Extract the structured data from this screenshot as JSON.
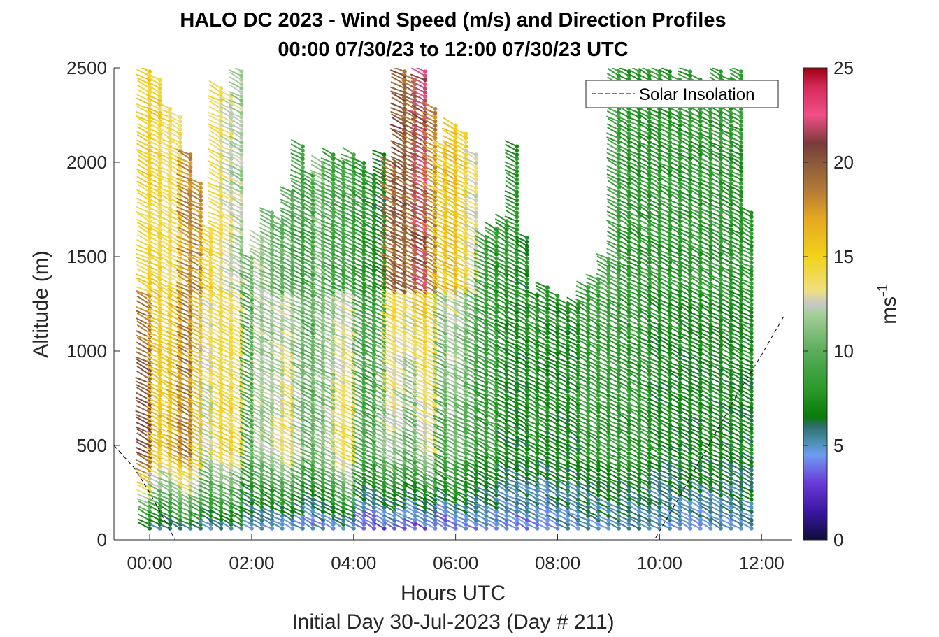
{
  "chart_data": {
    "type": "wind-barb-profile",
    "title_line1": "HALO DC 2023 - Wind Speed (m/s) and Direction Profiles",
    "title_line2": "00:00 07/30/23 to 12:00 07/30/23  UTC",
    "xlabel": "Hours UTC",
    "ylabel": "Altitude (m)",
    "footer": "Initial Day 30-Jul-2023 (Day # 211)",
    "x_ticks": [
      "00:00",
      "02:00",
      "04:00",
      "06:00",
      "08:00",
      "10:00",
      "12:00"
    ],
    "x_tick_hours": [
      0,
      2,
      4,
      6,
      8,
      10,
      12
    ],
    "xlim_hours": [
      -0.7,
      12.6
    ],
    "y_ticks": [
      "0",
      "500",
      "1000",
      "1500",
      "2000",
      "2500"
    ],
    "y_tick_values": [
      0,
      500,
      1000,
      1500,
      2000,
      2500
    ],
    "ylim": [
      0,
      2500
    ],
    "colorbar": {
      "label": "ms",
      "label_exponent": "-1",
      "ticks": [
        "0",
        "5",
        "10",
        "15",
        "20",
        "25"
      ],
      "tick_values": [
        0,
        5,
        10,
        15,
        20,
        25
      ],
      "range": [
        0,
        25
      ],
      "stops": [
        {
          "v": 0,
          "c": "#0d0d3a"
        },
        {
          "v": 1.5,
          "c": "#3a17a0"
        },
        {
          "v": 3,
          "c": "#6a3ad8"
        },
        {
          "v": 4.5,
          "c": "#6f9cf0"
        },
        {
          "v": 5.2,
          "c": "#4a8fb0"
        },
        {
          "v": 6,
          "c": "#2f6e6e"
        },
        {
          "v": 6.5,
          "c": "#0a7a0a"
        },
        {
          "v": 8,
          "c": "#2b9a2b"
        },
        {
          "v": 10,
          "c": "#5aad5a"
        },
        {
          "v": 12,
          "c": "#a7cf9a"
        },
        {
          "v": 12.5,
          "c": "#c8c8c8"
        },
        {
          "v": 13.2,
          "c": "#efe080"
        },
        {
          "v": 15,
          "c": "#f2d21a"
        },
        {
          "v": 17,
          "c": "#e6a820"
        },
        {
          "v": 18.5,
          "c": "#b47a36"
        },
        {
          "v": 20,
          "c": "#8a5a3a"
        },
        {
          "v": 21,
          "c": "#7a3a3a"
        },
        {
          "v": 22.5,
          "c": "#f04f87"
        },
        {
          "v": 24,
          "c": "#d42a5a"
        },
        {
          "v": 25,
          "c": "#a00010"
        }
      ]
    },
    "legend": {
      "label": "Solar Insolation",
      "position": "top-right",
      "style": "dashed"
    },
    "solar_insolation_hours": [
      -0.7,
      -0.3,
      0.0,
      0.5,
      9.9,
      10.5,
      11.0,
      11.5,
      12.0,
      12.45
    ],
    "solar_insolation_altitude": [
      500,
      380,
      250,
      0,
      0,
      280,
      520,
      760,
      980,
      1190
    ],
    "profile_times_hours": [
      0.0,
      0.2,
      0.4,
      0.6,
      0.8,
      1.0,
      1.2,
      1.4,
      1.6,
      1.8,
      2.0,
      2.2,
      2.4,
      2.6,
      2.8,
      3.0,
      3.2,
      3.4,
      3.6,
      3.8,
      4.0,
      4.2,
      4.4,
      4.6,
      4.8,
      5.0,
      5.2,
      5.4,
      5.6,
      5.8,
      6.0,
      6.2,
      6.4,
      6.6,
      6.8,
      7.0,
      7.2,
      7.4,
      7.6,
      7.8,
      8.0,
      8.2,
      8.4,
      8.6,
      8.8,
      9.0,
      9.2,
      9.4,
      9.6,
      9.8,
      10.0,
      10.2,
      10.4,
      10.6,
      10.8,
      11.0,
      11.2,
      11.4,
      11.6,
      11.8
    ],
    "profile_top_altitude": [
      2500,
      2450,
      2300,
      2250,
      2050,
      1900,
      1650,
      2400,
      2350,
      2500,
      1500,
      1600,
      1750,
      1700,
      1850,
      2100,
      1950,
      2000,
      2050,
      2000,
      2050,
      2000,
      1950,
      2050,
      2000,
      2500,
      2450,
      2500,
      2300,
      2100,
      2200,
      2150,
      2050,
      1600,
      1650,
      1700,
      2100,
      1600,
      1300,
      1350,
      1300,
      1250,
      1250,
      1350,
      1400,
      1500,
      2500,
      2500,
      2500,
      2500,
      2500,
      2500,
      2450,
      2500,
      2450,
      2400,
      2500,
      2450,
      2500,
      1750
    ],
    "profile_surface_speed": [
      4.5,
      4.5,
      4.5,
      4.5,
      4.5,
      4.5,
      4.5,
      4.5,
      4.5,
      4.5,
      4.5,
      3.5,
      3.5,
      3.5,
      3.5,
      3.5,
      3.5,
      3.5,
      3.5,
      3.5,
      3.5,
      2.5,
      2.5,
      2.5,
      2.5,
      2.5,
      2.5,
      2.5,
      2.5,
      2.5,
      2.5,
      3.5,
      3.5,
      3.5,
      3.5,
      3.5,
      3.5,
      3.5,
      3.5,
      3.5,
      4.5,
      4.5,
      4.5,
      4.5,
      4.5,
      4.5,
      4.5,
      4.5,
      4.5,
      4.5,
      4.5,
      4.5,
      4.5,
      4.5,
      4.5,
      4.5,
      4.5,
      4.5,
      4.5,
      4.5
    ],
    "profile_mid_speed": [
      21,
      16,
      15,
      17,
      19,
      16,
      12,
      14,
      15,
      14,
      9,
      12,
      12,
      13,
      14,
      12,
      10,
      11,
      12,
      14,
      15,
      10,
      9,
      11,
      12,
      11,
      10,
      12,
      13,
      9,
      11,
      10,
      9,
      8,
      9,
      7,
      7,
      7,
      8,
      7,
      7,
      7,
      7,
      8,
      8,
      8,
      8,
      8,
      8,
      8,
      7,
      7,
      7,
      7,
      7,
      7,
      7,
      7,
      7,
      7
    ],
    "profile_upper_speed": [
      15,
      15,
      14,
      14,
      18,
      18,
      15,
      14,
      13,
      12,
      10,
      12,
      11,
      10,
      10,
      9,
      9,
      11,
      9,
      9,
      9,
      8,
      8,
      7,
      19,
      20,
      19,
      22,
      18,
      15,
      16,
      15,
      13,
      9,
      8,
      8,
      8,
      7,
      7,
      8,
      8,
      8,
      8,
      9,
      9,
      9,
      9,
      8,
      8,
      8,
      8,
      8,
      8,
      8,
      8,
      8,
      8,
      8,
      8,
      8
    ]
  }
}
